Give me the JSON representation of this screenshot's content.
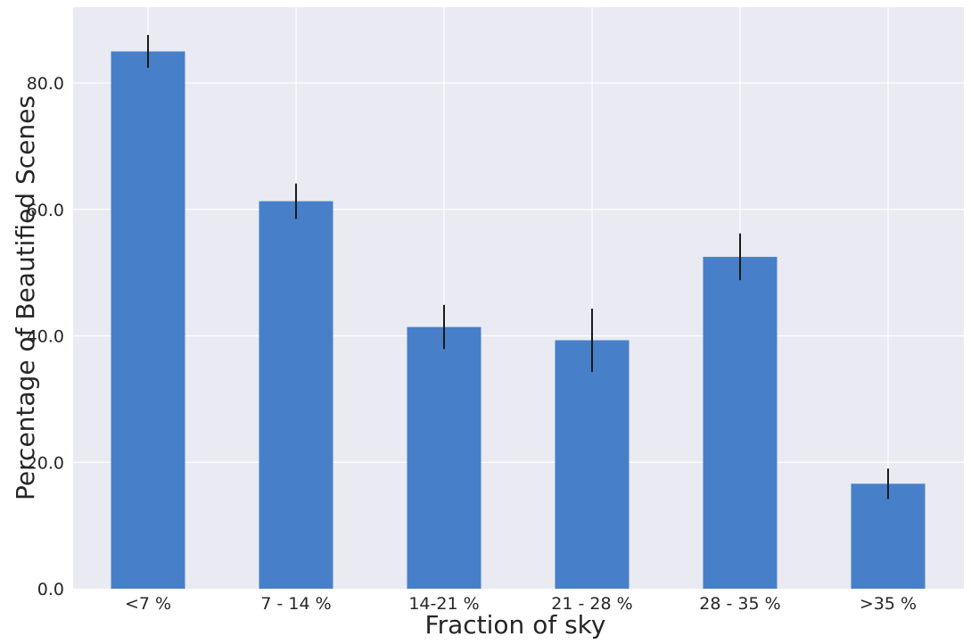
{
  "chart_data": {
    "type": "bar",
    "xlabel": "Fraction of sky",
    "ylabel": "Percentage of Beautified Scenes",
    "categories": [
      "<7 %",
      "7 - 14 %",
      "14-21 %",
      "21 - 28 %",
      "28 - 35 %",
      ">35 %"
    ],
    "values": [
      85.0,
      61.3,
      41.4,
      39.3,
      52.5,
      16.6
    ],
    "error": [
      2.6,
      2.8,
      3.5,
      5.0,
      3.7,
      2.4
    ],
    "yticks": [
      0.0,
      20.0,
      40.0,
      60.0,
      80.0
    ],
    "ytick_labels": [
      "0.0",
      "20.0",
      "40.0",
      "60.0",
      "80.0"
    ],
    "ylim": [
      0,
      92
    ],
    "grid": true,
    "colors": {
      "bar": "#4780c8",
      "error_bar": "#1a1a1a",
      "plot_background": "#eaeaf2",
      "grid": "#ffffff"
    }
  }
}
